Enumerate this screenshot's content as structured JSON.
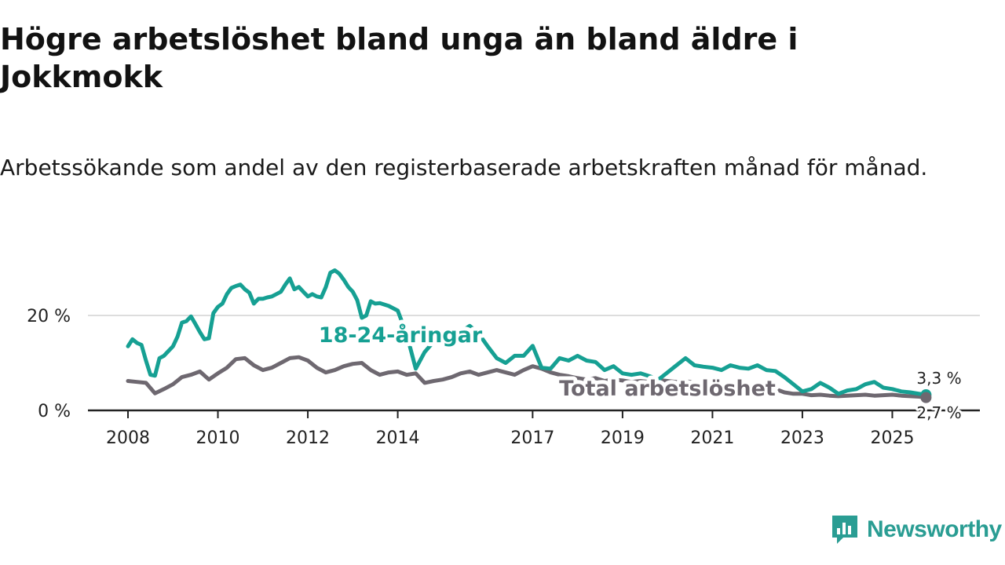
{
  "title": "Högre arbetslöshet bland unga än bland äldre i Jokkmokk",
  "subtitle": "Arbetssökande som andel av den registerbaserade arbetskraften månad för månad.",
  "brand": {
    "name": "Newsworthy"
  },
  "colors": {
    "youth": "#16a093",
    "total": "#6e6870",
    "grid": "#dddddd",
    "axis": "#222222",
    "text": "#222222"
  },
  "chart_data": {
    "type": "line",
    "title": "Högre arbetslöshet bland unga än bland äldre i Jokkmokk",
    "xlabel": "",
    "ylabel": "",
    "x_range": [
      2008.0,
      2025.9
    ],
    "ylim": [
      0,
      32
    ],
    "y_ticks": [
      0,
      20
    ],
    "y_tick_labels": [
      "0 %",
      "20 %"
    ],
    "x_ticks": [
      2008,
      2010,
      2012,
      2014,
      2017,
      2019,
      2021,
      2023,
      2025
    ],
    "x_tick_labels": [
      "2008",
      "2010",
      "2012",
      "2014",
      "2017",
      "2019",
      "2021",
      "2023",
      "2025"
    ],
    "grid": true,
    "series": [
      {
        "name": "18-24-åringar",
        "label": "18-24-åringar",
        "color": "#16a093",
        "end_label": "3,3 %",
        "x": [
          2008.0,
          2008.1,
          2008.2,
          2008.3,
          2008.4,
          2008.5,
          2008.6,
          2008.7,
          2008.8,
          2008.9,
          2009.0,
          2009.1,
          2009.2,
          2009.3,
          2009.4,
          2009.5,
          2009.6,
          2009.7,
          2009.8,
          2009.9,
          2010.0,
          2010.1,
          2010.2,
          2010.3,
          2010.4,
          2010.5,
          2010.6,
          2010.7,
          2010.8,
          2010.9,
          2011.0,
          2011.1,
          2011.2,
          2011.3,
          2011.4,
          2011.5,
          2011.6,
          2011.7,
          2011.8,
          2011.9,
          2012.0,
          2012.1,
          2012.2,
          2012.3,
          2012.4,
          2012.5,
          2012.6,
          2012.7,
          2012.8,
          2012.9,
          2013.0,
          2013.1,
          2013.2,
          2013.3,
          2013.4,
          2013.5,
          2013.6,
          2013.8,
          2014.0,
          2014.2,
          2014.4,
          2014.6,
          2014.8,
          2015.0,
          2015.2,
          2015.4,
          2015.6,
          2015.8,
          2016.0,
          2016.2,
          2016.4,
          2016.6,
          2016.8,
          2017.0,
          2017.2,
          2017.4,
          2017.6,
          2017.8,
          2018.0,
          2018.2,
          2018.4,
          2018.6,
          2018.8,
          2019.0,
          2019.2,
          2019.4,
          2019.6,
          2019.8,
          2020.0,
          2020.2,
          2020.4,
          2020.6,
          2020.8,
          2021.0,
          2021.2,
          2021.4,
          2021.6,
          2021.8,
          2022.0,
          2022.2,
          2022.4,
          2022.6,
          2022.8,
          2023.0,
          2023.2,
          2023.4,
          2023.6,
          2023.8,
          2024.0,
          2024.2,
          2024.4,
          2024.6,
          2024.8,
          2025.0,
          2025.2,
          2025.4,
          2025.6,
          2025.75
        ],
        "y": [
          13.5,
          15,
          14.2,
          13.8,
          10.5,
          7.5,
          7.3,
          11,
          11.5,
          12.5,
          13.5,
          15.5,
          18.5,
          18.8,
          19.8,
          18.2,
          16.5,
          15,
          15.2,
          20.5,
          21.8,
          22.5,
          24.5,
          25.8,
          26.2,
          26.5,
          25.5,
          24.8,
          22.5,
          23.5,
          23.5,
          23.8,
          24,
          24.5,
          25,
          26.5,
          27.8,
          25.5,
          26,
          25,
          24,
          24.5,
          24,
          23.8,
          26,
          29,
          29.5,
          28.8,
          27.5,
          26,
          25,
          23.2,
          19.5,
          20,
          23,
          22.5,
          22.6,
          22,
          21,
          16,
          8.8,
          12.3,
          14.5,
          15,
          13.5,
          16.5,
          17.8,
          16.2,
          13.5,
          11,
          10,
          11.5,
          11.5,
          13.6,
          9,
          8.8,
          11,
          10.5,
          11.5,
          10.5,
          10.2,
          8.5,
          9.3,
          7.8,
          7.5,
          7.8,
          7.2,
          6.5,
          8,
          9.5,
          11,
          9.5,
          9.2,
          9,
          8.5,
          9.5,
          9,
          8.8,
          9.5,
          8.5,
          8.3,
          7,
          5.5,
          4,
          4.5,
          5.8,
          4.8,
          3.5,
          4.2,
          4.5,
          5.5,
          6,
          4.8,
          4.5,
          4,
          3.8,
          3.5,
          3.3
        ]
      },
      {
        "name": "Total arbetslöshet",
        "label": "Total arbetslöshet",
        "color": "#6e6870",
        "end_label": "2,7 %",
        "x": [
          2008.0,
          2008.2,
          2008.4,
          2008.6,
          2008.8,
          2009.0,
          2009.2,
          2009.4,
          2009.6,
          2009.8,
          2010.0,
          2010.2,
          2010.4,
          2010.6,
          2010.8,
          2011.0,
          2011.2,
          2011.4,
          2011.6,
          2011.8,
          2012.0,
          2012.2,
          2012.4,
          2012.6,
          2012.8,
          2013.0,
          2013.2,
          2013.4,
          2013.6,
          2013.8,
          2014.0,
          2014.2,
          2014.4,
          2014.6,
          2014.8,
          2015.0,
          2015.2,
          2015.4,
          2015.6,
          2015.8,
          2016.0,
          2016.2,
          2016.4,
          2016.6,
          2016.8,
          2017.0,
          2017.2,
          2017.4,
          2017.6,
          2017.8,
          2018.0,
          2018.2,
          2018.4,
          2018.6,
          2018.8,
          2019.0,
          2019.2,
          2019.4,
          2019.6,
          2019.8,
          2020.0,
          2020.2,
          2020.4,
          2020.6,
          2020.8,
          2021.0,
          2021.2,
          2021.4,
          2021.6,
          2021.8,
          2022.0,
          2022.2,
          2022.4,
          2022.6,
          2022.8,
          2023.0,
          2023.2,
          2023.4,
          2023.6,
          2023.8,
          2024.0,
          2024.2,
          2024.4,
          2024.6,
          2024.8,
          2025.0,
          2025.2,
          2025.4,
          2025.6,
          2025.75
        ],
        "y": [
          6.2,
          6,
          5.8,
          3.6,
          4.5,
          5.5,
          7,
          7.5,
          8.2,
          6.5,
          7.8,
          9,
          10.8,
          11,
          9.5,
          8.5,
          9,
          10,
          11,
          11.2,
          10.5,
          9,
          8,
          8.5,
          9.3,
          9.8,
          10,
          8.5,
          7.5,
          8,
          8.2,
          7.5,
          7.8,
          5.8,
          6.2,
          6.5,
          7,
          7.8,
          8.2,
          7.5,
          8,
          8.5,
          8,
          7.5,
          8.5,
          9.3,
          8.8,
          8,
          7.5,
          7.2,
          6.8,
          6.5,
          6.8,
          6.2,
          6.5,
          6.3,
          6,
          6.2,
          6,
          6.4,
          6.2,
          6,
          6.2,
          5.8,
          5.5,
          6,
          5.5,
          5.8,
          5.3,
          5.5,
          4.8,
          5,
          4.5,
          3.8,
          3.5,
          3.5,
          3.2,
          3.3,
          3.1,
          3,
          3.1,
          3.2,
          3.3,
          3.1,
          3.2,
          3.3,
          3.1,
          3,
          2.9,
          2.7
        ]
      }
    ]
  }
}
